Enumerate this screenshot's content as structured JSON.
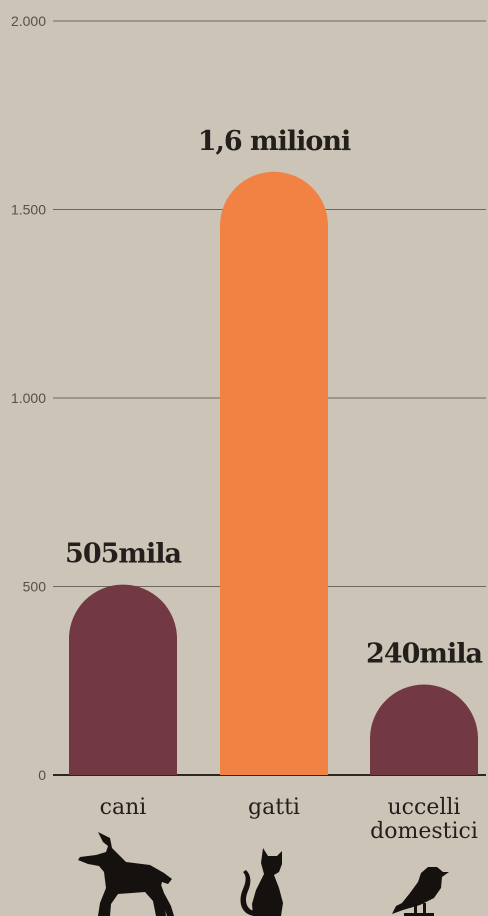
{
  "chart_data": {
    "type": "bar",
    "categories": [
      "cani",
      "gatti",
      "uccelli domestici"
    ],
    "category_lines": [
      [
        "cani"
      ],
      [
        "gatti"
      ],
      [
        "uccelli",
        "domestici"
      ]
    ],
    "values": [
      505,
      1600,
      240
    ],
    "data_labels": [
      "505mila",
      "1,6 milioni",
      "240mila"
    ],
    "bar_colors": [
      "#723843",
      "#f28243",
      "#723843"
    ],
    "icons": [
      "dog-icon",
      "cat-icon",
      "bird-icon"
    ],
    "yticks": [
      0,
      500,
      1000,
      1500,
      2000
    ],
    "ytick_labels": [
      "0",
      "500",
      "1.000",
      "1.500",
      "2.000"
    ],
    "ylim": [
      0,
      2000
    ],
    "grid": true,
    "title": "",
    "xlabel": "",
    "ylabel": ""
  }
}
